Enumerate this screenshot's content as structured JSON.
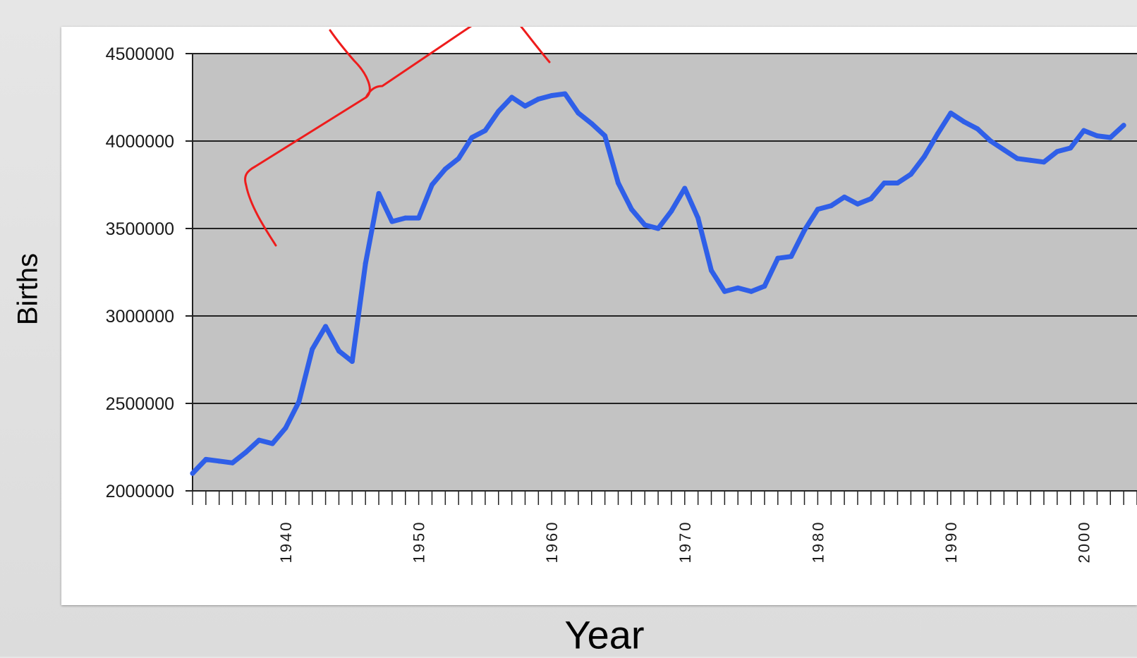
{
  "chart_data": {
    "type": "line",
    "title": "",
    "xlabel": "Year",
    "ylabel": "Births",
    "xlim": [
      1933,
      2004
    ],
    "ylim": [
      2000000,
      4500000
    ],
    "yticks": [
      2000000,
      2500000,
      3000000,
      3500000,
      4000000,
      4500000
    ],
    "ytick_labels": [
      "2000000",
      "2500000",
      "3000000",
      "3500000",
      "4000000",
      "4500000"
    ],
    "xticks": [
      1940,
      1950,
      1960,
      1970,
      1980,
      1990,
      2000
    ],
    "xtick_labels": [
      "1940",
      "1950",
      "1960",
      "1970",
      "1980",
      "1990",
      "2000"
    ],
    "grid": true,
    "legend": "none",
    "series": [
      {
        "color": "#2f5fe8",
        "x": [
          1933,
          1934,
          1935,
          1936,
          1937,
          1938,
          1939,
          1940,
          1941,
          1942,
          1943,
          1944,
          1945,
          1946,
          1947,
          1948,
          1949,
          1950,
          1951,
          1952,
          1953,
          1954,
          1955,
          1956,
          1957,
          1958,
          1959,
          1960,
          1961,
          1962,
          1963,
          1964,
          1965,
          1966,
          1967,
          1968,
          1969,
          1970,
          1971,
          1972,
          1973,
          1974,
          1975,
          1976,
          1977,
          1978,
          1979,
          1980,
          1981,
          1982,
          1983,
          1984,
          1985,
          1986,
          1987,
          1988,
          1989,
          1990,
          1991,
          1992,
          1993,
          1994,
          1995,
          1996,
          1997,
          1998,
          1999,
          2000,
          2001,
          2002,
          2003
        ],
        "y": [
          2100000,
          2180000,
          2170000,
          2160000,
          2220000,
          2290000,
          2270000,
          2360000,
          2510000,
          2810000,
          2940000,
          2800000,
          2740000,
          3300000,
          3700000,
          3540000,
          3560000,
          3560000,
          3750000,
          3840000,
          3900000,
          4020000,
          4060000,
          4170000,
          4250000,
          4200000,
          4240000,
          4260000,
          4270000,
          4160000,
          4100000,
          4030000,
          3760000,
          3610000,
          3520000,
          3500000,
          3600000,
          3730000,
          3560000,
          3260000,
          3140000,
          3160000,
          3140000,
          3170000,
          3330000,
          3340000,
          3490000,
          3610000,
          3630000,
          3680000,
          3640000,
          3670000,
          3760000,
          3760000,
          3810000,
          3910000,
          4040000,
          4160000,
          4110000,
          4070000,
          4000000,
          3950000,
          3900000,
          3890000,
          3880000,
          3940000,
          3960000,
          4060000,
          4030000,
          4020000,
          4090000
        ]
      }
    ],
    "annotation": {
      "type": "freehand-bracket",
      "color": "#ee1c1c"
    }
  }
}
